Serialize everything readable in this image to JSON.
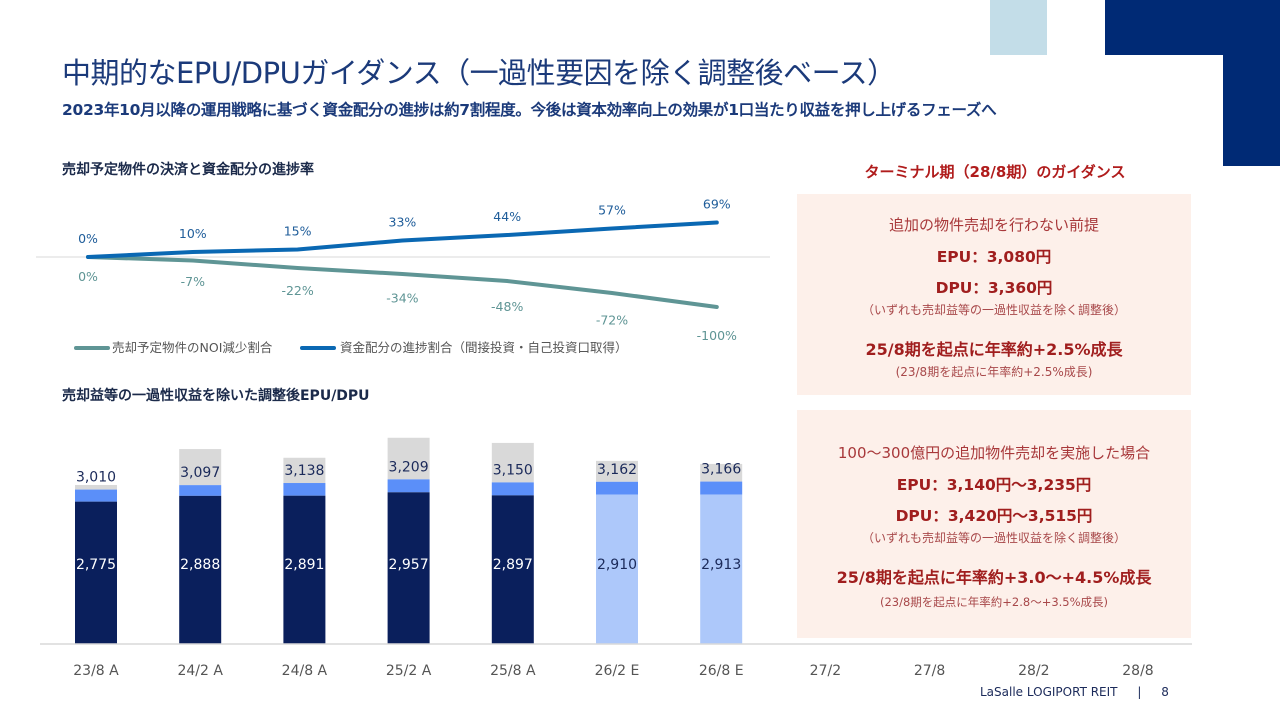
{
  "header": {
    "title": "中期的なEPU/DPUガイダンス（一過性要因を除く調整後ベース）",
    "subtitle": "2023年10月以降の運用戦略に基づく資金配分の進捗は約7割程度。今後は資本効率向上の効果が1口当たり収益を押し上げるフェーズへ"
  },
  "colors": {
    "navy": "#0a1f5c",
    "accent_blue": "#5b8ff9",
    "estimate_blue": "#adc8fa",
    "one_off_gray": "#d9d9d9",
    "line_blue": "#0a68b3",
    "line_teal": "#5f9595",
    "guidance_red": "#b01c1c",
    "deco_navy": "#002a75",
    "deco_light": "#c3dde8"
  },
  "chart_data": [
    {
      "type": "line",
      "title": "売却予定物件の決済と資金配分の進捗率",
      "x": [
        "23/8",
        "24/2",
        "24/8",
        "25/2",
        "25/8",
        "26/2",
        "26/8"
      ],
      "series": [
        {
          "name": "売却予定物件のNOI減少割合",
          "values": [
            0,
            -7,
            -22,
            -34,
            -48,
            -72,
            -100
          ],
          "labels": [
            "0%",
            "-7%",
            "-22%",
            "-34%",
            "-48%",
            "-72%",
            "-100%"
          ]
        },
        {
          "name": "資金配分の進捗割合（間接投資・自己投資口取得）",
          "values": [
            0,
            10,
            15,
            33,
            44,
            57,
            69
          ],
          "labels": [
            "0%",
            "10%",
            "15%",
            "33%",
            "44%",
            "57%",
            "69%"
          ]
        }
      ],
      "legend": "bottom",
      "grid": false
    },
    {
      "type": "bar",
      "title": "売却益等の一過性収益を除いた調整後EPU/DPU",
      "categories": [
        "23/8 A",
        "24/2 A",
        "24/8 A",
        "25/2 A",
        "25/8 A",
        "26/2 E",
        "26/8 E",
        "27/2",
        "27/8",
        "28/2",
        "28/8"
      ],
      "epu": [
        2775,
        2888,
        2891,
        2957,
        2897,
        2910,
        2913,
        null,
        null,
        null,
        null
      ],
      "epu_labels": [
        "2,775",
        "2,888",
        "2,891",
        "2,957",
        "2,897",
        "2,910",
        "2,913"
      ],
      "dpu": [
        3010,
        3097,
        3138,
        3209,
        3150,
        3162,
        3166,
        null,
        null,
        null,
        null
      ],
      "dpu_labels": [
        "3,010",
        "3,097",
        "3,138",
        "3,209",
        "3,150",
        "3,162",
        "3,166"
      ],
      "total_incl_one_off": [
        3100,
        3800,
        3630,
        4020,
        3920,
        3570,
        3510,
        null,
        null,
        null,
        null
      ],
      "estimate": [
        false,
        false,
        false,
        false,
        false,
        true,
        true
      ],
      "ylim": [
        0,
        4100
      ],
      "grid": false
    }
  ],
  "guidance": {
    "title": "ターミナル期（28/8期）のガイダンス",
    "box1": {
      "premise": "追加の物件売却を行わない前提",
      "epu": "EPU：3,080円",
      "dpu": "DPU：3,360円",
      "note": "（いずれも売却益等の一過性収益を除く調整後）",
      "growth": "25/8期を起点に年率約+2.5%成長",
      "growth_note": "(23/8期を起点に年率約+2.5%成長)"
    },
    "box2": {
      "premise": "100～300億円の追加物件売却を実施した場合",
      "epu": "EPU：3,140円～3,235円",
      "dpu": "DPU：3,420円～3,515円",
      "note": "（いずれも売却益等の一過性収益を除く調整後）",
      "growth": "25/8期を起点に年率約+3.0～+4.5%成長",
      "growth_note": "(23/8期を起点に年率約+2.8～+3.5%成長)"
    }
  },
  "footer": {
    "brand": "LaSalle LOGIPORT REIT",
    "separator": "|",
    "page": "8"
  }
}
